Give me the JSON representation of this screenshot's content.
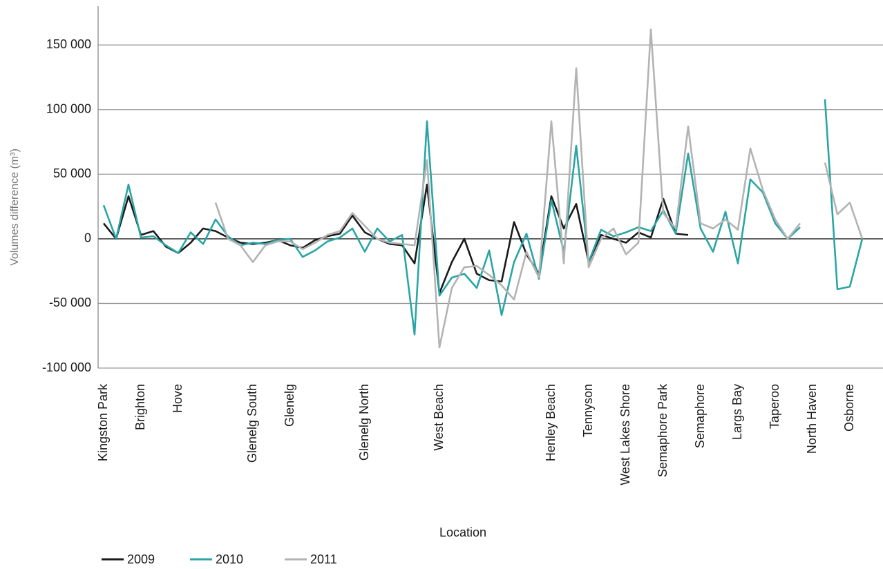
{
  "chart_data": {
    "type": "line",
    "x_label": "Location",
    "y_label": "Volumes difference (m³)",
    "categories": [
      "Kingston Park",
      null,
      null,
      "Brighton",
      null,
      null,
      "Hove",
      null,
      null,
      null,
      null,
      null,
      "Glenelg South",
      null,
      null,
      "Glenelg",
      null,
      null,
      null,
      null,
      null,
      "Glenelg North",
      null,
      null,
      null,
      null,
      null,
      "West Beach",
      null,
      null,
      null,
      null,
      null,
      null,
      null,
      null,
      "Henley Beach",
      null,
      null,
      "Tennyson",
      null,
      null,
      "West Lakes Shore",
      null,
      null,
      "Semaphore Park",
      null,
      null,
      "Semaphore",
      null,
      null,
      "Largs Bay",
      null,
      null,
      "Taperoo",
      null,
      null,
      "North Haven",
      null,
      null,
      "Osborne",
      null
    ],
    "series": [
      {
        "name": "2009",
        "color": "#1a1a1a",
        "values": [
          12000,
          0,
          33000,
          3000,
          6000,
          -6000,
          -11000,
          -3000,
          8000,
          6000,
          1000,
          -3000,
          -4000,
          -3000,
          -1000,
          -5000,
          -7000,
          -1000,
          2000,
          4000,
          18000,
          5000,
          0,
          -4000,
          -5000,
          -19000,
          42000,
          -42000,
          -18000,
          0,
          -27000,
          -32000,
          -33000,
          13000,
          -12000,
          -27000,
          33000,
          8000,
          27000,
          -18000,
          3000,
          0,
          -3000,
          5000,
          1000,
          31000,
          4000,
          3000,
          null,
          null,
          null,
          null,
          null,
          null,
          null,
          null,
          null,
          null,
          null,
          null,
          null,
          null
        ]
      },
      {
        "name": "2010",
        "color": "#2aa5a5",
        "values": [
          26000,
          0,
          42000,
          1000,
          2000,
          -5000,
          -11000,
          5000,
          -4000,
          15000,
          2000,
          -5000,
          -3000,
          -4000,
          -1000,
          0,
          -14000,
          -9000,
          -2000,
          1000,
          8000,
          -10000,
          8000,
          -2000,
          3000,
          -74000,
          91000,
          -44000,
          -30000,
          -27000,
          -38000,
          -9000,
          -59000,
          -18000,
          4000,
          -31000,
          30000,
          -10000,
          72000,
          -18000,
          7000,
          2000,
          5000,
          9000,
          6000,
          22000,
          4000,
          66000,
          8000,
          -10000,
          21000,
          -19000,
          46000,
          36000,
          12000,
          0,
          9000,
          null,
          108000,
          -39000,
          -37000,
          0
        ]
      },
      {
        "name": "2011",
        "color": "#b3b3b3",
        "values": [
          null,
          null,
          null,
          null,
          null,
          null,
          null,
          null,
          null,
          28000,
          0,
          -5000,
          -18000,
          -5000,
          -2000,
          -2000,
          -8000,
          -3000,
          3000,
          6000,
          20000,
          10000,
          0,
          -3000,
          -4000,
          -5000,
          61000,
          -84000,
          -38000,
          -22000,
          -21000,
          -28000,
          -36000,
          -47000,
          -10000,
          -30000,
          91000,
          -19000,
          132000,
          -22000,
          0,
          8000,
          -12000,
          -3000,
          162000,
          20000,
          8000,
          87000,
          12000,
          8000,
          15000,
          7000,
          70000,
          38000,
          15000,
          0,
          12000,
          null,
          59000,
          19000,
          28000,
          0
        ]
      }
    ],
    "ylim": [
      -100000,
      180000
    ],
    "yticks": [
      {
        "value": -100000,
        "label": "-100 000"
      },
      {
        "value": -50000,
        "label": "-50 000"
      },
      0,
      {
        "value": 50000,
        "label": "50 000"
      },
      {
        "value": 100000,
        "label": "100 000"
      },
      {
        "value": 150000,
        "label": "150 000"
      }
    ],
    "grid": true,
    "legend": "bottom-left"
  }
}
